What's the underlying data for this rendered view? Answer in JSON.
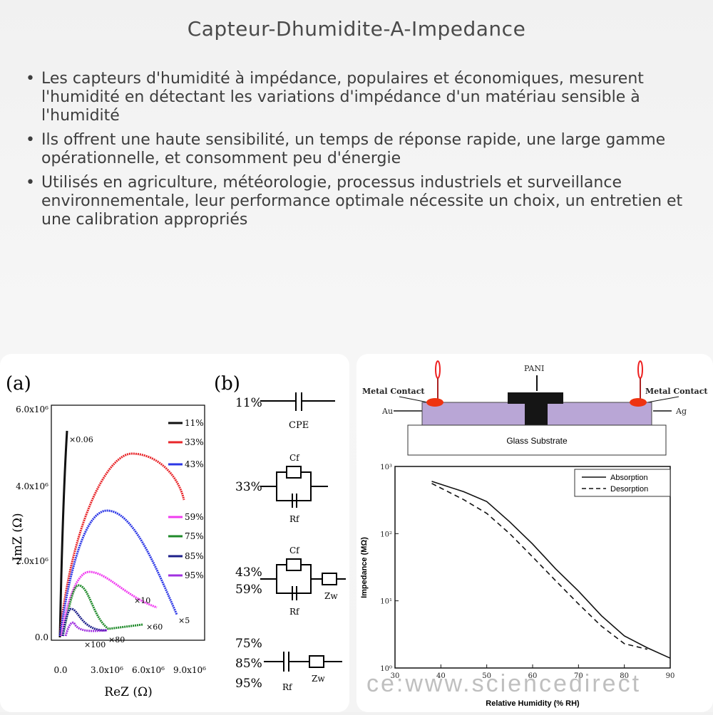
{
  "title": "Capteur-Dhumidite-A-Impedance",
  "bullets": [
    "Les capteurs d'humidité à impédance, populaires et économiques, mesurent l'humidité en détectant les variations d'impédance d'un matériau sensible à l'humidité",
    "Ils offrent une haute sensibilité, un temps de réponse rapide, une large gamme opérationnelle, et consomment peu d'énergie",
    "Utilisés en agriculture, météorologie, processus industriels et surveillance environnementale, leur performance optimale nécessite un choix, un entretien et une calibration appropriés"
  ],
  "figure": {
    "panel_a_label": "(a)",
    "panel_b_label": "(b)",
    "watermark": "ce:www.sciencedirect",
    "nyquist": {
      "ylabel": "-ImZ (Ω)",
      "xlabel": "ReZ (Ω)",
      "yticks": [
        "0.0",
        "2.0x10⁶",
        "4.0x10⁶",
        "6.0x10⁶"
      ],
      "xticks": [
        "0.0",
        "3.0x10⁶",
        "6.0x10⁶",
        "9.0x10⁶"
      ],
      "legend": [
        {
          "label": "11%",
          "color": "#111111"
        },
        {
          "label": "33%",
          "color": "#e8262a"
        },
        {
          "label": "43%",
          "color": "#2b36e6"
        },
        {
          "label": "59%",
          "color": "#f03cf0"
        },
        {
          "label": "75%",
          "color": "#1f8a2a"
        },
        {
          "label": "85%",
          "color": "#1d1f8a"
        },
        {
          "label": "95%",
          "color": "#a030e0"
        }
      ],
      "annotations": [
        "×0.06",
        "×10",
        "×5",
        "×60",
        "×80",
        "×100"
      ]
    },
    "circuits": [
      {
        "rh": [
          "11%"
        ],
        "labels": [
          "CPE"
        ]
      },
      {
        "rh": [
          "33%"
        ],
        "labels": [
          "Cf",
          "Rf"
        ]
      },
      {
        "rh": [
          "43%",
          "59%"
        ],
        "labels": [
          "Cf",
          "Rf",
          "Zw"
        ]
      },
      {
        "rh": [
          "75%",
          "85%",
          "95%"
        ],
        "labels": [
          "Rf",
          "Zw"
        ]
      }
    ],
    "sensor": {
      "pani": "PANI",
      "metal_contact_left": "Metal Contact",
      "metal_contact_right": "Metal Contact",
      "au": "Au",
      "ag": "Ag",
      "substrate": "Glass Substrate"
    },
    "impedance_chart": {
      "ylabel": "Impedance (MΩ)",
      "xlabel": "Relative Humidity (% RH)",
      "xticks": [
        "30",
        "40",
        "50",
        "60",
        "70",
        "80",
        "90"
      ],
      "yticks": [
        "10⁰",
        "10¹",
        "10²",
        "10³"
      ],
      "legend": [
        "Absorption",
        "Desorption"
      ]
    }
  },
  "chart_data": {
    "type": "line",
    "title": "",
    "xlabel": "Relative Humidity (% RH)",
    "ylabel": "Impedance (MΩ)",
    "xlim": [
      30,
      90
    ],
    "ylim": [
      1,
      1000
    ],
    "yscale": "log",
    "series": [
      {
        "name": "Absorption",
        "x": [
          38,
          45,
          50,
          55,
          60,
          65,
          70,
          75,
          80,
          85,
          90
        ],
        "values": [
          600,
          420,
          300,
          150,
          70,
          30,
          14,
          6,
          3,
          2,
          1.4
        ]
      },
      {
        "name": "Desorption",
        "x": [
          38,
          45,
          50,
          55,
          60,
          65,
          70,
          75,
          80,
          85
        ],
        "values": [
          560,
          320,
          200,
          100,
          45,
          20,
          9,
          4.2,
          2.3,
          1.9
        ]
      }
    ]
  }
}
